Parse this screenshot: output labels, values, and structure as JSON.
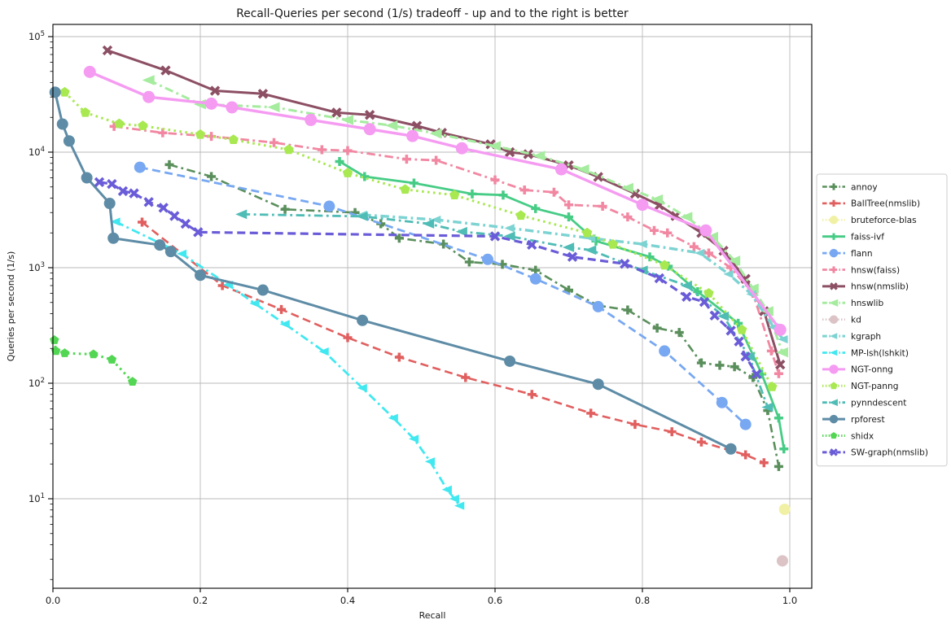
{
  "figure": {
    "title": "Recall-Queries per second (1/s) tradeoff - up and to the right is better",
    "xlabel": "Recall",
    "ylabel": "Queries per second (1/s)"
  },
  "axes": {
    "grid": true,
    "x_ticks": [
      {
        "label": "0.0",
        "value": 0.0
      },
      {
        "label": "0.2",
        "value": 0.2
      },
      {
        "label": "0.4",
        "value": 0.4
      },
      {
        "label": "0.6",
        "value": 0.6
      },
      {
        "label": "0.8",
        "value": 0.8
      },
      {
        "label": "1.0",
        "value": 1.0
      }
    ],
    "y_ticks": [
      {
        "base": "10",
        "exp": "5",
        "value": 100000
      },
      {
        "base": "10",
        "exp": "4",
        "value": 10000
      },
      {
        "base": "10",
        "exp": "3",
        "value": 1000
      },
      {
        "base": "10",
        "exp": "2",
        "value": 100
      },
      {
        "base": "10",
        "exp": "1",
        "value": 10
      }
    ]
  },
  "chart_data": {
    "type": "line",
    "title": "Recall-Queries per second (1/s) tradeoff - up and to the right is better",
    "xlabel": "Recall",
    "ylabel": "Queries per second (1/s)",
    "x_scale": "linear",
    "y_scale": "log",
    "xlim": [
      0.0,
      1.03
    ],
    "ylim": [
      1.7,
      110000
    ],
    "grid": true,
    "legend_position": "outside-center-right",
    "series": [
      {
        "name": "annoy",
        "color": "#5a8f5c",
        "linestyle": "dashdot",
        "marker": "plus",
        "marker_size": 11,
        "line_width": 2.6,
        "points": [
          [
            0.158,
            7800
          ],
          [
            0.215,
            6150
          ],
          [
            0.315,
            3200
          ],
          [
            0.41,
            3000
          ],
          [
            0.445,
            2400
          ],
          [
            0.47,
            1800
          ],
          [
            0.53,
            1600
          ],
          [
            0.565,
            1120
          ],
          [
            0.61,
            1070
          ],
          [
            0.655,
            950
          ],
          [
            0.7,
            640
          ],
          [
            0.74,
            470
          ],
          [
            0.78,
            430
          ],
          [
            0.82,
            300
          ],
          [
            0.85,
            275
          ],
          [
            0.88,
            150
          ],
          [
            0.905,
            143
          ],
          [
            0.925,
            139
          ],
          [
            0.95,
            112
          ],
          [
            0.97,
            58
          ],
          [
            0.985,
            19
          ]
        ]
      },
      {
        "name": "BallTree(nmslib)",
        "color": "#e15f5f",
        "linestyle": "dashed",
        "marker": "plus",
        "marker_size": 11,
        "line_width": 2.6,
        "points": [
          [
            0.121,
            2480
          ],
          [
            0.23,
            700
          ],
          [
            0.31,
            435
          ],
          [
            0.4,
            248
          ],
          [
            0.47,
            168
          ],
          [
            0.56,
            112
          ],
          [
            0.65,
            80
          ],
          [
            0.73,
            55
          ],
          [
            0.79,
            44
          ],
          [
            0.84,
            38
          ],
          [
            0.88,
            31
          ],
          [
            0.94,
            24
          ],
          [
            0.965,
            20.5
          ]
        ]
      },
      {
        "name": "bruteforce-blas",
        "color": "#f1f1a6",
        "linestyle": "dotted",
        "marker": "circle",
        "marker_size": 14,
        "line_width": 2.6,
        "points": [
          [
            0.993,
            8.1
          ]
        ]
      },
      {
        "name": "faiss-ivf",
        "color": "#46cc85",
        "linestyle": "solid",
        "marker": "plus",
        "marker_size": 11,
        "line_width": 2.8,
        "points": [
          [
            0.389,
            8300
          ],
          [
            0.423,
            6150
          ],
          [
            0.49,
            5400
          ],
          [
            0.569,
            4350
          ],
          [
            0.611,
            4250
          ],
          [
            0.655,
            3250
          ],
          [
            0.7,
            2750
          ],
          [
            0.737,
            1700
          ],
          [
            0.81,
            1240
          ],
          [
            0.835,
            1030
          ],
          [
            0.875,
            620
          ],
          [
            0.93,
            330
          ],
          [
            0.962,
            120
          ],
          [
            0.985,
            50
          ],
          [
            0.992,
            27
          ]
        ]
      },
      {
        "name": "flann",
        "color": "#78a8f2",
        "linestyle": "dashed",
        "marker": "circle",
        "marker_size": 14,
        "line_width": 2.8,
        "points": [
          [
            0.118,
            7400
          ],
          [
            0.375,
            3400
          ],
          [
            0.59,
            1180
          ],
          [
            0.655,
            800
          ],
          [
            0.74,
            460
          ],
          [
            0.83,
            190
          ],
          [
            0.908,
            68
          ],
          [
            0.94,
            44
          ]
        ]
      },
      {
        "name": "hnsw(faiss)",
        "color": "#f287a2",
        "linestyle": "dashdot",
        "marker": "plus",
        "marker_size": 11,
        "line_width": 2.8,
        "points": [
          [
            0.083,
            16700
          ],
          [
            0.149,
            14700
          ],
          [
            0.215,
            13700
          ],
          [
            0.3,
            12100
          ],
          [
            0.365,
            10500
          ],
          [
            0.4,
            10300
          ],
          [
            0.48,
            8700
          ],
          [
            0.52,
            8500
          ],
          [
            0.6,
            5750
          ],
          [
            0.64,
            4700
          ],
          [
            0.68,
            4500
          ],
          [
            0.7,
            3500
          ],
          [
            0.746,
            3400
          ],
          [
            0.78,
            2750
          ],
          [
            0.816,
            2100
          ],
          [
            0.834,
            2000
          ],
          [
            0.87,
            1520
          ],
          [
            0.89,
            1340
          ],
          [
            0.92,
            1000
          ],
          [
            0.95,
            600
          ],
          [
            0.975,
            190
          ],
          [
            0.985,
            121
          ]
        ]
      },
      {
        "name": "hnsw(nmslib)",
        "color": "#8c4f63",
        "linestyle": "solid",
        "marker": "x",
        "marker_size": 12,
        "line_width": 3.0,
        "points": [
          [
            0.074,
            76000
          ],
          [
            0.153,
            51000
          ],
          [
            0.22,
            34000
          ],
          [
            0.285,
            32000
          ],
          [
            0.385,
            22000
          ],
          [
            0.43,
            21000
          ],
          [
            0.494,
            16900
          ],
          [
            0.528,
            14700
          ],
          [
            0.594,
            11700
          ],
          [
            0.62,
            10000
          ],
          [
            0.645,
            9600
          ],
          [
            0.7,
            7700
          ],
          [
            0.74,
            6100
          ],
          [
            0.79,
            4370
          ],
          [
            0.823,
            3470
          ],
          [
            0.845,
            2800
          ],
          [
            0.88,
            2000
          ],
          [
            0.91,
            1400
          ],
          [
            0.94,
            800
          ],
          [
            0.965,
            420
          ],
          [
            0.987,
            145
          ]
        ]
      },
      {
        "name": "hnswlib",
        "color": "#a5ec9f",
        "linestyle": "dashdot",
        "marker": "triangle-left",
        "marker_size": 16,
        "line_width": 3.0,
        "points": [
          [
            0.13,
            42000
          ],
          [
            0.2,
            26000
          ],
          [
            0.3,
            24500
          ],
          [
            0.4,
            19000
          ],
          [
            0.46,
            17000
          ],
          [
            0.52,
            14500
          ],
          [
            0.6,
            11300
          ],
          [
            0.66,
            9300
          ],
          [
            0.72,
            7100
          ],
          [
            0.78,
            4900
          ],
          [
            0.82,
            3900
          ],
          [
            0.86,
            2750
          ],
          [
            0.895,
            1850
          ],
          [
            0.925,
            1150
          ],
          [
            0.95,
            660
          ],
          [
            0.97,
            420
          ],
          [
            0.99,
            185
          ]
        ]
      },
      {
        "name": "kd",
        "color": "#dbc3c6",
        "linestyle": "dotted",
        "marker": "circle",
        "marker_size": 14,
        "line_width": 2.6,
        "points": [
          [
            0.99,
            2.9
          ]
        ]
      },
      {
        "name": "kgraph",
        "color": "#7cd3d2",
        "linestyle": "dashdot",
        "marker": "triangle-left",
        "marker_size": 13,
        "line_width": 3.4,
        "points": [
          [
            0.42,
            2870
          ],
          [
            0.52,
            2600
          ],
          [
            0.62,
            2200
          ],
          [
            0.73,
            1800
          ],
          [
            0.8,
            1600
          ],
          [
            0.878,
            1340
          ],
          [
            0.917,
            880
          ],
          [
            0.948,
            590
          ],
          [
            0.978,
            305
          ],
          [
            0.991,
            240
          ]
        ]
      },
      {
        "name": "MP-lsh(lshkit)",
        "color": "#41e8f0",
        "linestyle": "dashdot",
        "marker": "triangle-left",
        "marker_size": 13,
        "line_width": 2.8,
        "points": [
          [
            0.085,
            2500
          ],
          [
            0.175,
            1320
          ],
          [
            0.238,
            710
          ],
          [
            0.274,
            490
          ],
          [
            0.315,
            325
          ],
          [
            0.368,
            188
          ],
          [
            0.42,
            91
          ],
          [
            0.462,
            50
          ],
          [
            0.49,
            33
          ],
          [
            0.512,
            21
          ],
          [
            0.535,
            12
          ],
          [
            0.545,
            10
          ],
          [
            0.552,
            8.7
          ]
        ]
      },
      {
        "name": "NGT-onng",
        "color": "#f59bf2",
        "linestyle": "solid",
        "marker": "circle",
        "marker_size": 15,
        "line_width": 3.4,
        "points": [
          [
            0.05,
            49500
          ],
          [
            0.13,
            30000
          ],
          [
            0.215,
            26300
          ],
          [
            0.243,
            24400
          ],
          [
            0.35,
            19000
          ],
          [
            0.43,
            15800
          ],
          [
            0.488,
            13800
          ],
          [
            0.555,
            10800
          ],
          [
            0.69,
            7100
          ],
          [
            0.8,
            3500
          ],
          [
            0.886,
            2100
          ],
          [
            0.987,
            290
          ]
        ]
      },
      {
        "name": "NGT-panng",
        "color": "#a8e850",
        "linestyle": "dotted",
        "marker": "pentagon",
        "marker_size": 13,
        "line_width": 3.0,
        "points": [
          [
            0.016,
            33000
          ],
          [
            0.044,
            22000
          ],
          [
            0.09,
            17600
          ],
          [
            0.122,
            16900
          ],
          [
            0.2,
            14200
          ],
          [
            0.245,
            12800
          ],
          [
            0.32,
            10500
          ],
          [
            0.4,
            6600
          ],
          [
            0.478,
            4750
          ],
          [
            0.545,
            4250
          ],
          [
            0.635,
            2830
          ],
          [
            0.725,
            2000
          ],
          [
            0.76,
            1590
          ],
          [
            0.83,
            1050
          ],
          [
            0.89,
            600
          ],
          [
            0.935,
            290
          ],
          [
            0.976,
            93
          ]
        ]
      },
      {
        "name": "pynndescent",
        "color": "#4fbcb5",
        "linestyle": "dashdot",
        "marker": "triangle-left",
        "marker_size": 15,
        "line_width": 2.8,
        "points": [
          [
            0.256,
            2900
          ],
          [
            0.42,
            2780
          ],
          [
            0.51,
            2400
          ],
          [
            0.555,
            2050
          ],
          [
            0.62,
            1870
          ],
          [
            0.7,
            1500
          ],
          [
            0.73,
            1420
          ],
          [
            0.8,
            950
          ],
          [
            0.86,
            700
          ],
          [
            0.91,
            380
          ],
          [
            0.945,
            170
          ],
          [
            0.97,
            62
          ]
        ]
      },
      {
        "name": "rpforest",
        "color": "#5e8ca6",
        "linestyle": "solid",
        "marker": "circle",
        "marker_size": 14,
        "line_width": 3.0,
        "points": [
          [
            0.003,
            33000
          ],
          [
            0.013,
            17500
          ],
          [
            0.022,
            12500
          ],
          [
            0.046,
            6000
          ],
          [
            0.077,
            3600
          ],
          [
            0.082,
            1800
          ],
          [
            0.145,
            1570
          ],
          [
            0.16,
            1380
          ],
          [
            0.2,
            860
          ],
          [
            0.285,
            640
          ],
          [
            0.42,
            350
          ],
          [
            0.62,
            155
          ],
          [
            0.74,
            98
          ],
          [
            0.92,
            27
          ]
        ]
      },
      {
        "name": "shidx",
        "color": "#53d653",
        "linestyle": "dotted",
        "marker": "pentagon",
        "marker_size": 12,
        "line_width": 3.0,
        "points": [
          [
            0.002,
            236
          ],
          [
            0.004,
            190
          ],
          [
            0.016,
            182
          ],
          [
            0.055,
            178
          ],
          [
            0.08,
            160
          ],
          [
            0.108,
            103
          ]
        ]
      },
      {
        "name": "SW-graph(nmslib)",
        "color": "#6a5cd8",
        "linestyle": "dashed",
        "marker": "x",
        "marker_size": 12,
        "line_width": 3.2,
        "points": [
          [
            0.063,
            5500
          ],
          [
            0.08,
            5300
          ],
          [
            0.095,
            4600
          ],
          [
            0.11,
            4400
          ],
          [
            0.13,
            3700
          ],
          [
            0.15,
            3300
          ],
          [
            0.165,
            2800
          ],
          [
            0.18,
            2400
          ],
          [
            0.197,
            2030
          ],
          [
            0.6,
            1870
          ],
          [
            0.65,
            1580
          ],
          [
            0.705,
            1240
          ],
          [
            0.776,
            1080
          ],
          [
            0.823,
            810
          ],
          [
            0.86,
            560
          ],
          [
            0.884,
            505
          ],
          [
            0.898,
            385
          ],
          [
            0.92,
            285
          ],
          [
            0.931,
            230
          ],
          [
            0.94,
            170
          ],
          [
            0.955,
            120
          ]
        ]
      }
    ]
  }
}
